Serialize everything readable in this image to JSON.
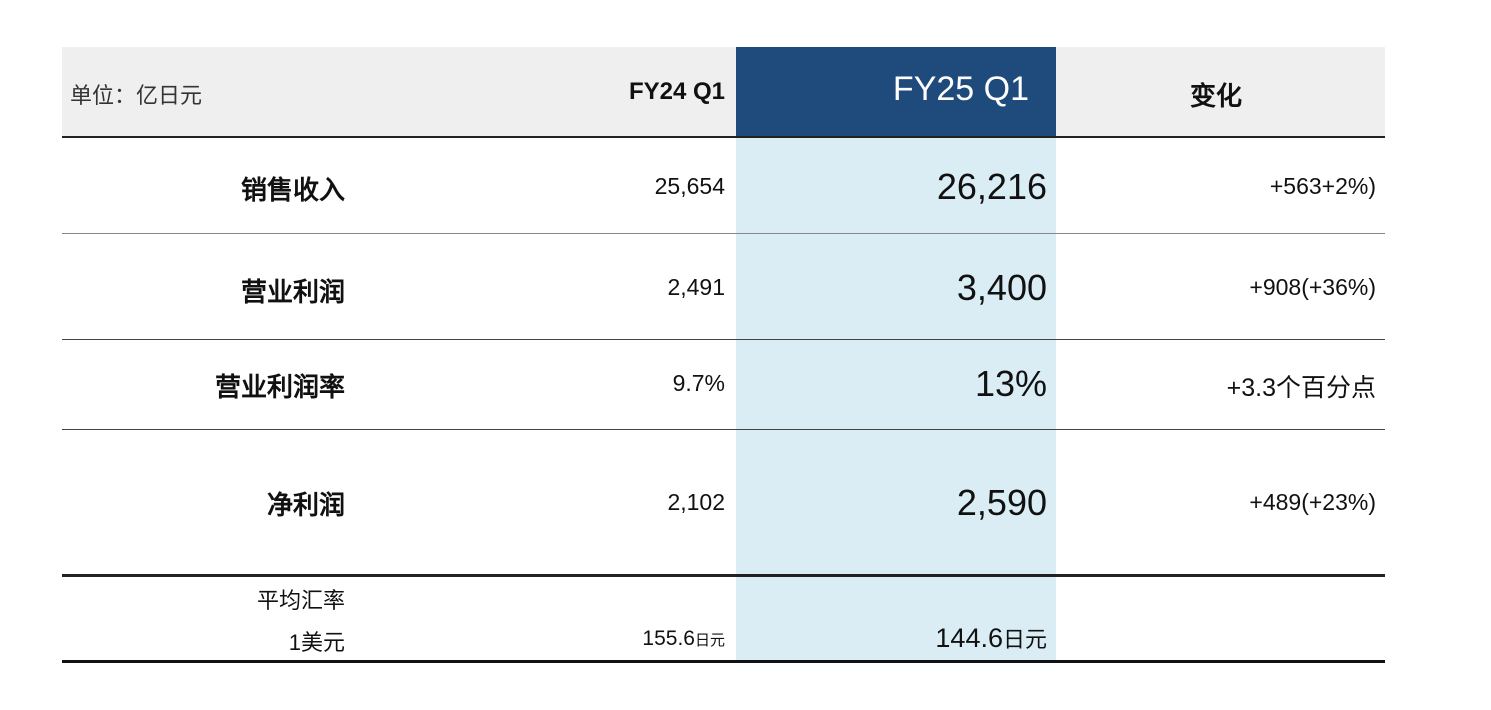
{
  "header": {
    "unit": "单位：亿日元",
    "fy24": "FY24 Q1",
    "fy25": "FY25 Q1",
    "change": "变化"
  },
  "rows": [
    {
      "label": "销售收入",
      "fy24": "25,654",
      "fy25": "26,216",
      "change": "+563+2%)"
    },
    {
      "label": "营业利润",
      "fy24": "2,491",
      "fy25": "3,400",
      "change": "+908(+36%)"
    },
    {
      "label": "营业利润率",
      "fy24": "9.7%",
      "fy25": "13%",
      "change": "+3.3个百分点"
    },
    {
      "label": "净利润",
      "fy24": "2,102",
      "fy25": "2,590",
      "change": "+489(+23%)"
    }
  ],
  "fx": {
    "label_line1": "平均汇率",
    "label_line2": "1美元",
    "fy24_value": "155.6",
    "fy25_value": "144.6",
    "unit": "日元"
  },
  "colors": {
    "header_bg": "#efefef",
    "fy25_header": "#1f4a7c",
    "fy25_band": "#daedf4"
  }
}
